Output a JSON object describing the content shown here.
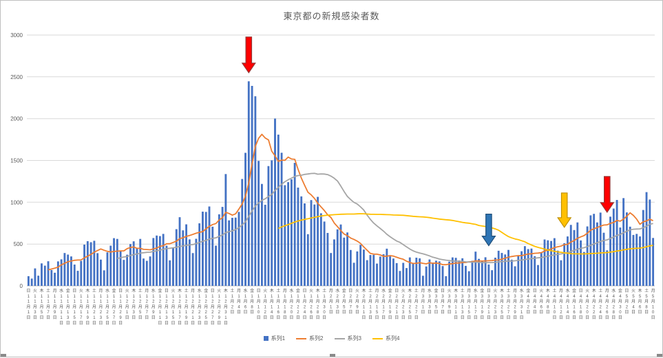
{
  "axis_color": "#595959",
  "grid_color": "#D9D9D9",
  "chart_data": {
    "type": "bar",
    "title": "東京都の新規感染者数",
    "ylim": [
      0,
      3000
    ],
    "yticks": [
      0,
      500,
      1000,
      1500,
      2000,
      2500,
      3000
    ],
    "grid": true,
    "legend_position": "bottom",
    "weekdays": [
      "日",
      "月",
      "火",
      "水",
      "木",
      "金",
      "土"
    ],
    "start_weekday": 0,
    "x_label_every": 2,
    "months": [
      {
        "m": 11,
        "days": 30
      },
      {
        "m": 12,
        "days": 31
      },
      {
        "m": 1,
        "days": 31
      },
      {
        "m": 2,
        "days": 28
      },
      {
        "m": 3,
        "days": 31
      },
      {
        "m": 4,
        "days": 30
      },
      {
        "m": 5,
        "days": 10
      }
    ],
    "series": [
      {
        "name": "系列1",
        "type": "bar",
        "color": "#4472C4",
        "source": "daily_values"
      },
      {
        "name": "系列2",
        "type": "line",
        "color": "#ED7D31",
        "derived": "moving_average",
        "window": 7
      },
      {
        "name": "系列3",
        "type": "line",
        "color": "#A5A5A5",
        "derived": "moving_average",
        "window": 28
      },
      {
        "name": "系列4",
        "type": "line",
        "color": "#FFC000",
        "derived": "moving_average",
        "window": 77
      }
    ],
    "values": [
      116,
      87,
      209,
      122,
      269,
      242,
      294,
      189,
      157,
      293,
      317,
      393,
      374,
      352,
      255,
      180,
      298,
      493,
      534,
      522,
      539,
      391,
      314,
      186,
      401,
      481,
      570,
      561,
      418,
      311,
      372,
      500,
      533,
      449,
      561,
      327,
      299,
      352,
      572,
      602,
      595,
      621,
      480,
      305,
      460,
      678,
      821,
      664,
      736,
      556,
      392,
      563,
      748,
      888,
      884,
      949,
      708,
      481,
      856,
      944,
      1337,
      783,
      814,
      816,
      884,
      1278,
      1591,
      2447,
      2392,
      2268,
      1494,
      1219,
      970,
      1433,
      1502,
      2001,
      1809,
      1592,
      1204,
      1240,
      1274,
      1471,
      1175,
      1070,
      986,
      618,
      1026,
      973,
      1064,
      868,
      769,
      633,
      393,
      556,
      676,
      734,
      577,
      639,
      429,
      276,
      412,
      491,
      434,
      307,
      369,
      371,
      266,
      350,
      378,
      445,
      353,
      327,
      272,
      178,
      275,
      213,
      340,
      270,
      337,
      329,
      121,
      232,
      316,
      279,
      301,
      293,
      237,
      116,
      290,
      340,
      335,
      304,
      330,
      239,
      175,
      300,
      409,
      323,
      303,
      342,
      256,
      187,
      337,
      420,
      394,
      376,
      430,
      313,
      234,
      364,
      414,
      475,
      440,
      446,
      355,
      249,
      399,
      555,
      545,
      537,
      570,
      421,
      306,
      510,
      591,
      729,
      667,
      759,
      543,
      405,
      711,
      843,
      861,
      759,
      876,
      635,
      425,
      828,
      925,
      1027,
      698,
      1050,
      879,
      708,
      609,
      621,
      591,
      907,
      1121,
      1032,
      573
    ],
    "annotations": [
      {
        "name": "red-arrow-peak",
        "shape": "block-arrow-down",
        "color": "#FF0000",
        "border": "#953735",
        "day_index": 67,
        "tip_value": 2550,
        "height": 52
      },
      {
        "name": "blue-arrow",
        "shape": "block-arrow-down",
        "color": "#2E75B6",
        "border": "#1F4E79",
        "day_index": 140,
        "tip_value": 480,
        "height": 46
      },
      {
        "name": "yellow-arrow",
        "shape": "block-arrow-down",
        "color": "#FFC000",
        "border": "#BF8F00",
        "day_index": 163,
        "tip_value": 700,
        "height": 50
      },
      {
        "name": "red-arrow-late",
        "shape": "block-arrow-down",
        "color": "#FF0000",
        "border": "#953735",
        "day_index": 176,
        "tip_value": 880,
        "height": 52
      }
    ]
  }
}
